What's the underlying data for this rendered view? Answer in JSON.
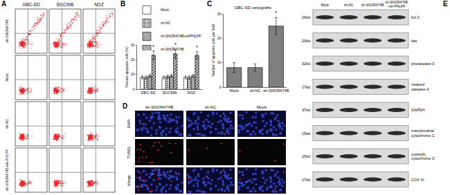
{
  "flow_cytometry": {
    "letter": "A",
    "columns": [
      "GBC-SD",
      "SGC996",
      "NOZ"
    ],
    "rows": [
      "sh-SNORA74B",
      "Mock",
      "sh-NC",
      "sh-SNORA74B+sh-PHLPP"
    ]
  },
  "chart_data": [
    {
      "letter": "B",
      "type": "bar",
      "categories": [
        "GBC-SD",
        "SGC996",
        "NOZ"
      ],
      "ylabel": "Percent apoptotic cells (%)",
      "ylim": [
        0,
        30
      ],
      "yticks": [
        0,
        10,
        20,
        30
      ],
      "legend": "top",
      "series": [
        {
          "name": "Mock",
          "color": "#ffffff",
          "values": [
            8,
            8,
            8
          ],
          "error": [
            1,
            1,
            1
          ]
        },
        {
          "name": "sh-NC",
          "color": "#ffffff",
          "values": [
            8,
            8.5,
            8
          ],
          "error": [
            1,
            1,
            1
          ]
        },
        {
          "name": "sh-SNORA74B+shPHLPP",
          "color": "#a6a6a6",
          "values": [
            9,
            9,
            9
          ],
          "error": [
            1,
            1,
            1
          ]
        },
        {
          "name": "sh-SNORA74B",
          "color": "#d9d9d9",
          "values": [
            23,
            24,
            23
          ],
          "error": [
            3,
            3,
            2.5
          ]
        }
      ],
      "annotations": [
        {
          "text": "*",
          "series": "sh-SNORA74B",
          "category": "GBC-SD"
        },
        {
          "text": "*",
          "series": "sh-SNORA74B",
          "category": "SGC996"
        },
        {
          "text": "*",
          "series": "sh-SNORA74B",
          "category": "NOZ"
        }
      ]
    },
    {
      "letter": "C",
      "type": "bar",
      "title": "GBC-SD xenografts",
      "categories": [
        "Mock",
        "sh-NC",
        "sh-SNORA74B"
      ],
      "values": [
        8,
        8,
        25
      ],
      "error": [
        2,
        1.5,
        3.5
      ],
      "color": "#7f7f7f",
      "ylabel": "Number of apoptotic cells per field",
      "ylim": [
        0,
        30
      ],
      "yticks": [
        0,
        10,
        20,
        30
      ],
      "annotations": [
        {
          "text": "*",
          "category": "sh-SNORA74B"
        }
      ]
    }
  ],
  "tunel": {
    "letter": "D",
    "columns": [
      "sh-SNORA74B",
      "sh-NC",
      "Mock"
    ],
    "rows": [
      "DAPI",
      "TUNEL",
      "Merge"
    ]
  },
  "western_blot": {
    "letter": "E",
    "lanes": [
      "Mock",
      "sh-NC",
      "sh-SNORA74B",
      "sh-SNORA74B+sh-PHLPP"
    ],
    "bands": [
      {
        "size": "26kd",
        "label": "bcl-2"
      },
      {
        "size": "20kd",
        "label": "bax"
      },
      {
        "size": "32kd",
        "label": "procaspase-3"
      },
      {
        "size": "17kd",
        "label": "cleaved caspase-3"
      },
      {
        "size": "37kd",
        "label": "GAPDH"
      },
      {
        "size": "15kd",
        "label": "mitochondrial cytochrome C"
      },
      {
        "size": "15kd",
        "label": "cytosolic cytochrome C"
      },
      {
        "size": "17kd",
        "label": "COX IV"
      }
    ]
  }
}
